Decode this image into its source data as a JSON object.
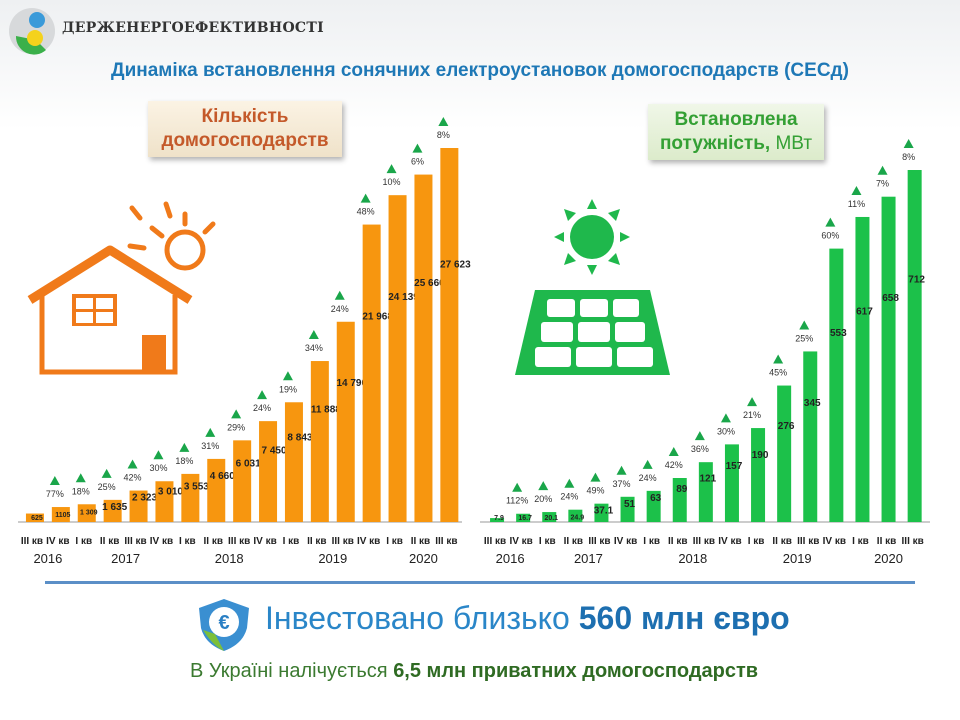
{
  "header": {
    "org_name": "ДЕРЖЕНЕРГОЕФЕКТИВНОСТІ",
    "title": "Динаміка встановлення сонячних електроустановок домогосподарств (СЕСд)"
  },
  "colors": {
    "orange": "#f7960f",
    "green": "#1cc14a",
    "triangle": "#1aa64a",
    "title_blue": "#1e78b6"
  },
  "chart_data": [
    {
      "type": "bar",
      "title": "Кількість домогосподарств",
      "title_lines": [
        "Кількість",
        "домогосподарств"
      ],
      "categories": [
        "III кв",
        "IV кв",
        "I кв",
        "II кв",
        "III кв",
        "IV кв",
        "I кв",
        "II кв",
        "III кв",
        "IV кв",
        "I кв",
        "II кв",
        "III кв",
        "IV кв",
        "I кв",
        "II кв",
        "III кв"
      ],
      "years": [
        {
          "label": "2016",
          "from": 0,
          "to": 1
        },
        {
          "label": "2017",
          "from": 2,
          "to": 5
        },
        {
          "label": "2018",
          "from": 6,
          "to": 9
        },
        {
          "label": "2019",
          "from": 10,
          "to": 13
        },
        {
          "label": "2020",
          "from": 14,
          "to": 16
        }
      ],
      "values": [
        625,
        1105,
        1309,
        1635,
        2323,
        3010,
        3553,
        4660,
        6031,
        7450,
        8843,
        11888,
        14790,
        21968,
        24139,
        25660,
        27623
      ],
      "value_labels": [
        "625",
        "1105",
        "1 309",
        "1 635",
        "2 323",
        "3 010",
        "3 553",
        "4 660",
        "6 031",
        "7 450",
        "8 843",
        "11 888",
        "14 790",
        "21 968",
        "24 139",
        "25 660",
        "27 623"
      ],
      "growth_labels": [
        "77%",
        "18%",
        "25%",
        "42%",
        "30%",
        "18%",
        "31%",
        "29%",
        "24%",
        "19%",
        "34%",
        "24%",
        "48%",
        "10%",
        "6%",
        "8%"
      ],
      "ylim": [
        0,
        27623
      ]
    },
    {
      "type": "bar",
      "title": "Встановлена потужність, МВт",
      "title_bold": "Встановлена потужність,",
      "title_unit": "МВт",
      "categories": [
        "III кв",
        "IV кв",
        "I кв",
        "II кв",
        "III кв",
        "IV кв",
        "I кв",
        "II кв",
        "III кв",
        "IV кв",
        "I кв",
        "II кв",
        "III кв",
        "IV кв",
        "I кв",
        "II кв",
        "III кв"
      ],
      "years": [
        {
          "label": "2016",
          "from": 0,
          "to": 1
        },
        {
          "label": "2017",
          "from": 2,
          "to": 5
        },
        {
          "label": "2018",
          "from": 6,
          "to": 9
        },
        {
          "label": "2019",
          "from": 10,
          "to": 13
        },
        {
          "label": "2020",
          "from": 14,
          "to": 16
        }
      ],
      "values": [
        7.9,
        16.7,
        20.1,
        24.9,
        37.1,
        51,
        63,
        89,
        121,
        157,
        190,
        276,
        345,
        553,
        617,
        658,
        712
      ],
      "value_labels": [
        "7.9",
        "16.7",
        "20.1",
        "24.9",
        "37.1",
        "51",
        "63",
        "89",
        "121",
        "157",
        "190",
        "276",
        "345",
        "553",
        "617",
        "658",
        "712"
      ],
      "growth_labels": [
        "112%",
        "20%",
        "24%",
        "49%",
        "37%",
        "24%",
        "42%",
        "36%",
        "30%",
        "21%",
        "45%",
        "25%",
        "60%",
        "11%",
        "7%",
        "8%"
      ],
      "ylim": [
        0,
        712
      ]
    }
  ],
  "footer": {
    "invest_prefix": "Інвестовано близько ",
    "invest_bold": "560 млн євро",
    "households_prefix": "В Україні налічується ",
    "households_bold": "6,5 млн приватних домогосподарств"
  }
}
